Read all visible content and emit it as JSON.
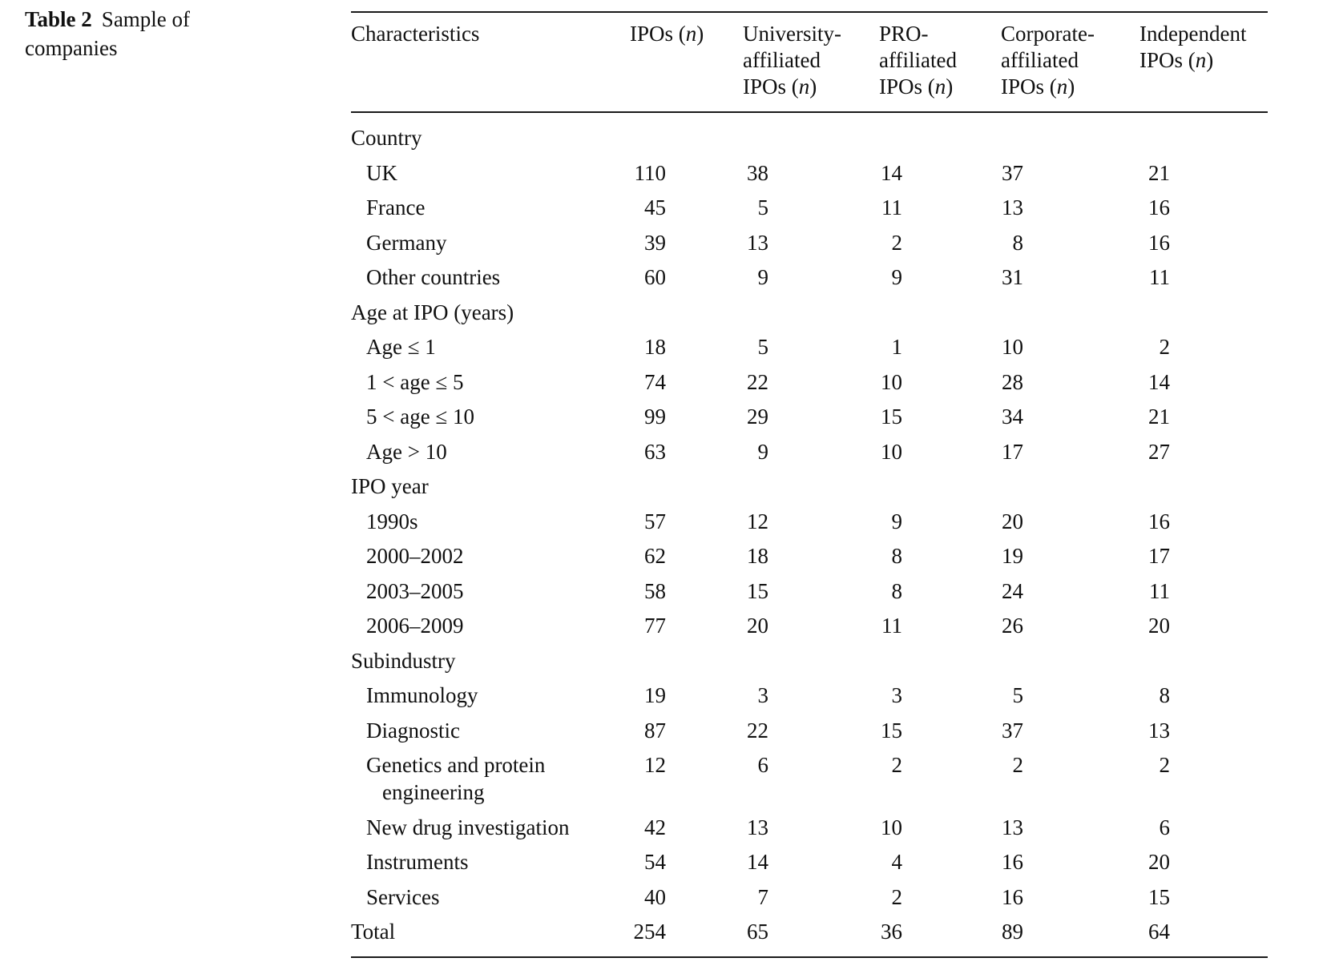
{
  "caption": {
    "label": "Table 2",
    "text": "Sample of companies"
  },
  "headers": {
    "characteristics": "Characteristics",
    "ipos": "IPOs",
    "univ_1": "University-",
    "univ_2": "affiliated",
    "univ_3": "IPOs",
    "pro_1": "PRO-",
    "pro_2": "affiliated",
    "pro_3": "IPOs",
    "corp_1": "Corporate-",
    "corp_2": "affiliated",
    "corp_3": "IPOs",
    "ind_1": "Independent",
    "ind_2": "IPOs",
    "n_symbol": "n"
  },
  "groups": {
    "country": "Country",
    "age": "Age at IPO (years)",
    "ipo_year": "IPO year",
    "subindustry": "Subindustry"
  },
  "rows": {
    "uk": {
      "label": "UK",
      "v": [
        "110",
        "38",
        "14",
        "37",
        "21"
      ]
    },
    "france": {
      "label": "France",
      "v": [
        "45",
        "5",
        "11",
        "13",
        "16"
      ]
    },
    "germany": {
      "label": "Germany",
      "v": [
        "39",
        "13",
        "2",
        "8",
        "16"
      ]
    },
    "other": {
      "label": "Other countries",
      "v": [
        "60",
        "9",
        "9",
        "31",
        "11"
      ]
    },
    "age1": {
      "label": "Age ≤ 1",
      "v": [
        "18",
        "5",
        "1",
        "10",
        "2"
      ]
    },
    "age5": {
      "label": "1 < age ≤ 5",
      "v": [
        "74",
        "22",
        "10",
        "28",
        "14"
      ]
    },
    "age10": {
      "label": "5 < age ≤ 10",
      "v": [
        "99",
        "29",
        "15",
        "34",
        "21"
      ]
    },
    "age10plus": {
      "label": "Age > 10",
      "v": [
        "63",
        "9",
        "10",
        "17",
        "27"
      ]
    },
    "y1990s": {
      "label": "1990s",
      "v": [
        "57",
        "12",
        "9",
        "20",
        "16"
      ]
    },
    "y2000": {
      "label": "2000–2002",
      "v": [
        "62",
        "18",
        "8",
        "19",
        "17"
      ]
    },
    "y2003": {
      "label": "2003–2005",
      "v": [
        "58",
        "15",
        "8",
        "24",
        "11"
      ]
    },
    "y2006": {
      "label": "2006–2009",
      "v": [
        "77",
        "20",
        "11",
        "26",
        "20"
      ]
    },
    "immuno": {
      "label": "Immunology",
      "v": [
        "19",
        "3",
        "3",
        "5",
        "8"
      ]
    },
    "diag": {
      "label": "Diagnostic",
      "v": [
        "87",
        "22",
        "15",
        "37",
        "13"
      ]
    },
    "genetics": {
      "label_1": "Genetics and protein",
      "label_2": "engineering",
      "v": [
        "12",
        "6",
        "2",
        "2",
        "2"
      ]
    },
    "newdrug": {
      "label": "New drug investigation",
      "v": [
        "42",
        "13",
        "10",
        "13",
        "6"
      ]
    },
    "instr": {
      "label": "Instruments",
      "v": [
        "54",
        "14",
        "4",
        "16",
        "20"
      ]
    },
    "services": {
      "label": "Services",
      "v": [
        "40",
        "7",
        "2",
        "16",
        "15"
      ]
    },
    "total": {
      "label": "Total",
      "v": [
        "254",
        "65",
        "36",
        "89",
        "64"
      ]
    }
  }
}
